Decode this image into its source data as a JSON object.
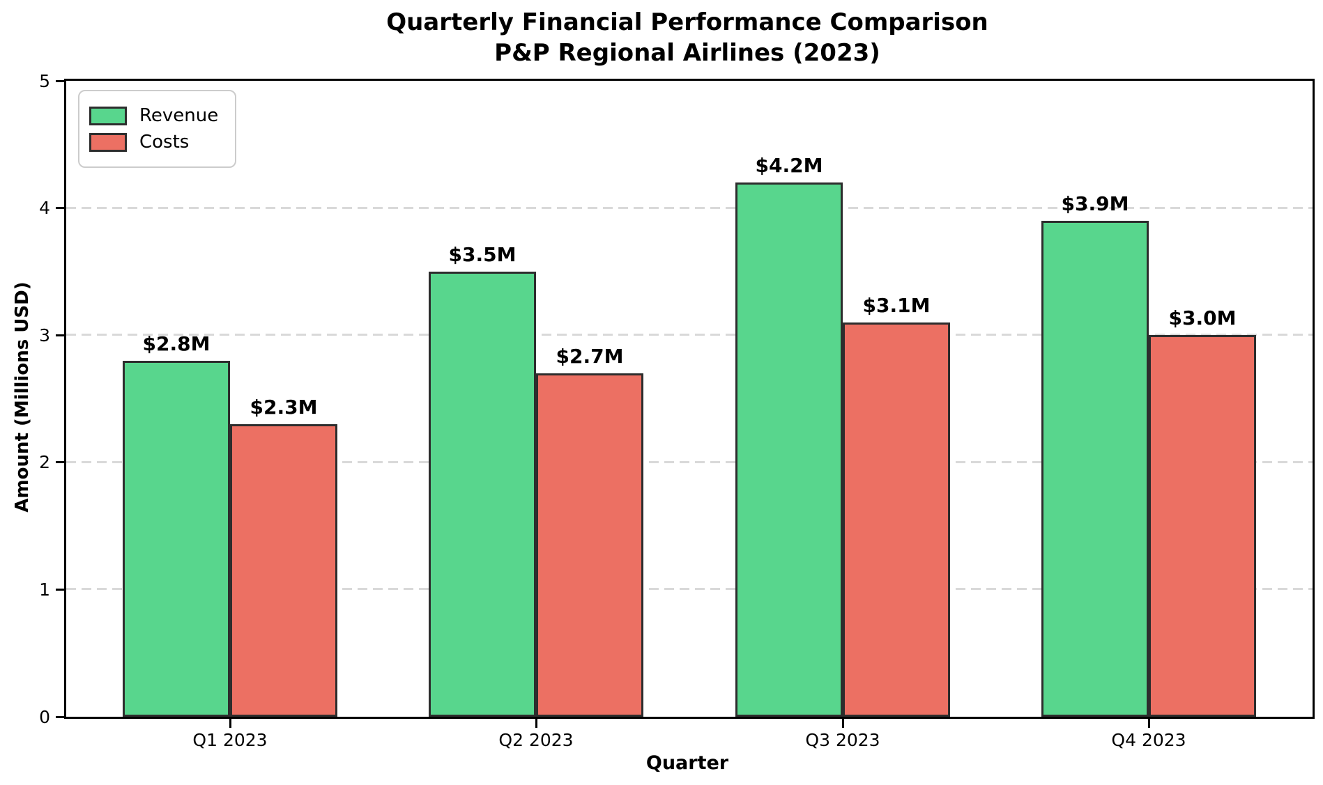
{
  "chart_data": {
    "type": "bar",
    "title_lines": [
      "Quarterly Financial Performance Comparison",
      "P&P Regional Airlines (2023)"
    ],
    "categories": [
      "Q1 2023",
      "Q2 2023",
      "Q3 2023",
      "Q4 2023"
    ],
    "series": [
      {
        "name": "Revenue",
        "color": "#58D68D",
        "values": [
          2.8,
          3.5,
          4.2,
          3.9
        ],
        "labels": [
          "$2.8M",
          "$3.5M",
          "$4.2M",
          "$3.9M"
        ]
      },
      {
        "name": "Costs",
        "color": "#EC7063",
        "values": [
          2.3,
          2.7,
          3.1,
          3.0
        ],
        "labels": [
          "$2.3M",
          "$2.7M",
          "$3.1M",
          "$3.0M"
        ]
      }
    ],
    "xlabel": "Quarter",
    "ylabel": "Amount (Millions USD)",
    "ylim": [
      0,
      5
    ],
    "yticks": [
      0,
      1,
      2,
      3,
      4,
      5
    ],
    "gridlines_at": [
      1,
      2,
      3,
      4
    ],
    "grid": "horizontal-dashed",
    "legend_position": "upper-left",
    "bar_edge_color": "#2d2d2d",
    "grid_color": "#d9d9d9"
  }
}
